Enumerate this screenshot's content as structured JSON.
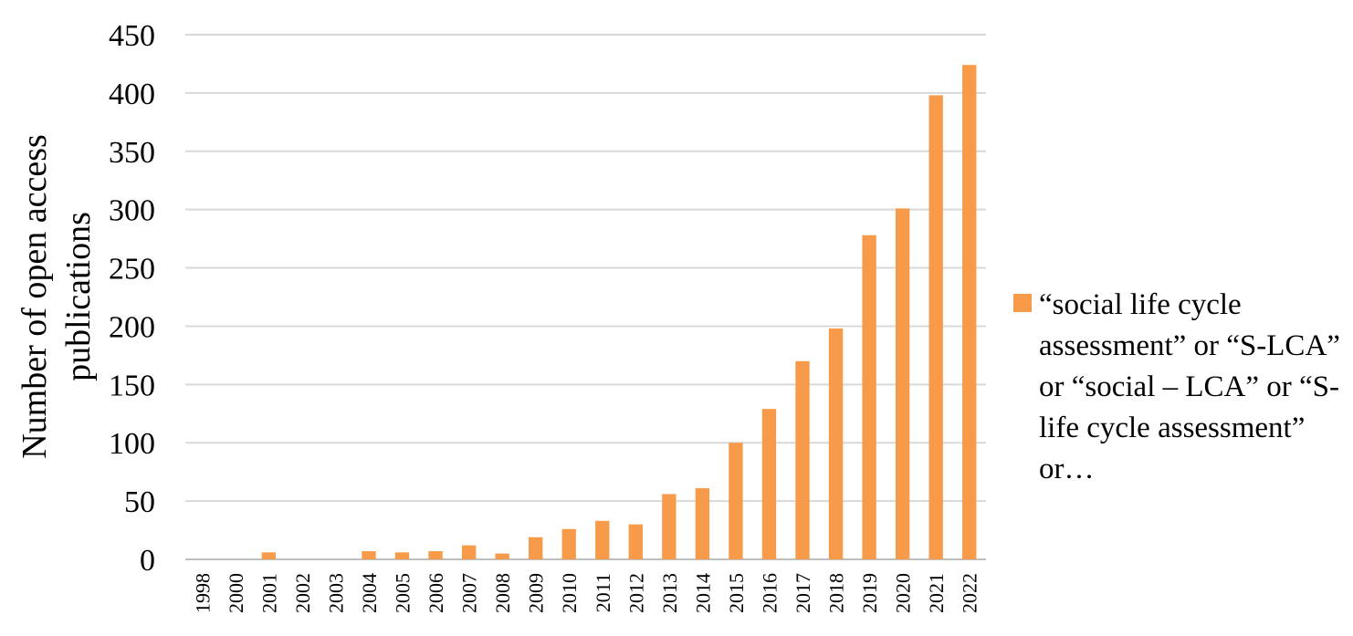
{
  "chart_data": {
    "type": "bar",
    "categories": [
      "1998",
      "2000",
      "2001",
      "2002",
      "2003",
      "2004",
      "2005",
      "2006",
      "2007",
      "2008",
      "2009",
      "2010",
      "2011",
      "2012",
      "2013",
      "2014",
      "2015",
      "2016",
      "2017",
      "2018",
      "2019",
      "2020",
      "2021",
      "2022"
    ],
    "series": [
      {
        "name": "“social life cycle assessment” or “S-LCA” or “social – LCA” or “S-life cycle assessment” or…",
        "values": [
          0,
          0,
          6,
          0,
          0,
          7,
          6,
          7,
          12,
          5,
          19,
          26,
          33,
          30,
          56,
          61,
          100,
          129,
          170,
          198,
          278,
          301,
          398,
          424
        ],
        "color": "#F79A4A"
      }
    ],
    "title": "",
    "ylabel_lines": [
      "Number of  open access",
      "publications"
    ],
    "xlabel": "",
    "ylim": [
      0,
      450
    ],
    "yticks": [
      0,
      50,
      100,
      150,
      200,
      250,
      300,
      350,
      400,
      450
    ],
    "grid": true,
    "legend_position": "right"
  }
}
